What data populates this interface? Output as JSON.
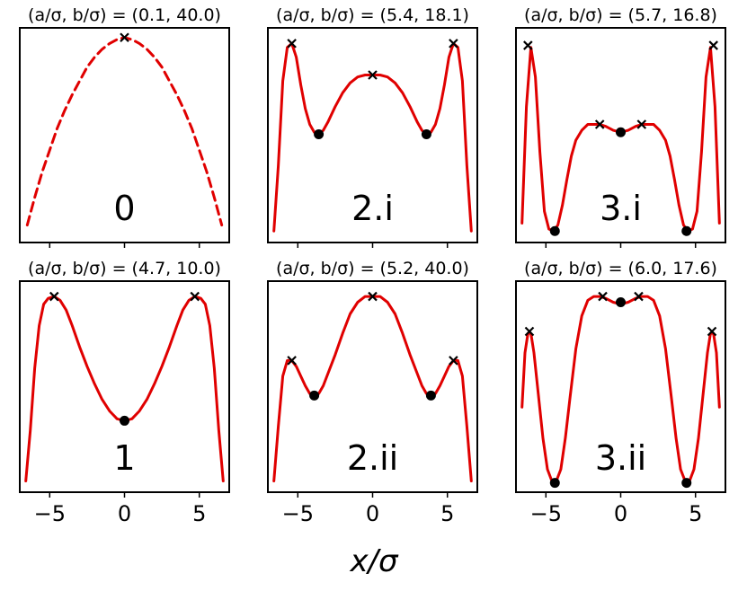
{
  "chart_data": {
    "xlabel": "x/σ",
    "xlim": [
      -7.0,
      7.0
    ],
    "xticks": [
      -5,
      0,
      5
    ],
    "xtick_labels": [
      "−5",
      "0",
      "5"
    ],
    "line_color": "#e00000",
    "marker_color": "#000000",
    "panels": [
      {
        "type": "line",
        "title": "(a/σ, b/σ) = (0.1, 40.0)",
        "label": "0",
        "dashed": true,
        "x": [
          -6.5,
          -6.0,
          -5.5,
          -5.0,
          -4.5,
          -4.0,
          -3.5,
          -3.0,
          -2.5,
          -2.0,
          -1.5,
          -1.0,
          -0.5,
          0,
          0.5,
          1.0,
          1.5,
          2.0,
          2.5,
          3.0,
          3.5,
          4.0,
          4.5,
          5.0,
          5.5,
          6.0,
          6.5
        ],
        "y": [
          0.05,
          0.19,
          0.32,
          0.43,
          0.54,
          0.63,
          0.71,
          0.78,
          0.85,
          0.9,
          0.94,
          0.97,
          0.99,
          1.0,
          0.99,
          0.97,
          0.94,
          0.9,
          0.85,
          0.78,
          0.71,
          0.63,
          0.54,
          0.43,
          0.32,
          0.19,
          0.05
        ],
        "maxima_x": [
          0.0
        ],
        "maxima_y": [
          1.0
        ],
        "minima_x": [],
        "minima_y": []
      },
      {
        "type": "line",
        "title": "(a/σ, b/σ) = (5.4, 18.1)",
        "label": "2.i",
        "dashed": false,
        "x": [
          -6.6,
          -6.3,
          -6.0,
          -5.7,
          -5.4,
          -5.1,
          -4.8,
          -4.5,
          -4.2,
          -3.9,
          -3.6,
          -3.3,
          -3.0,
          -2.5,
          -2.0,
          -1.5,
          -1.0,
          -0.5,
          0,
          0.5,
          1.0,
          1.5,
          2.0,
          2.5,
          3.0,
          3.3,
          3.6,
          3.9,
          4.2,
          4.5,
          4.8,
          5.1,
          5.4,
          5.7,
          6.0,
          6.3,
          6.6
        ],
        "y": [
          0.02,
          0.35,
          0.78,
          0.95,
          0.97,
          0.9,
          0.76,
          0.64,
          0.56,
          0.52,
          0.51,
          0.53,
          0.57,
          0.65,
          0.72,
          0.77,
          0.8,
          0.81,
          0.81,
          0.81,
          0.8,
          0.77,
          0.72,
          0.65,
          0.57,
          0.53,
          0.51,
          0.52,
          0.56,
          0.64,
          0.76,
          0.9,
          0.97,
          0.95,
          0.78,
          0.35,
          0.02
        ],
        "maxima_x": [
          -5.4,
          0.0,
          5.4
        ],
        "maxima_y": [
          0.97,
          0.81,
          0.97
        ],
        "minima_x": [
          -3.6,
          3.6
        ],
        "minima_y": [
          0.51,
          0.51
        ]
      },
      {
        "type": "line",
        "title": "(a/σ, b/σ) = (5.7, 16.8)",
        "label": "3.i",
        "dashed": false,
        "x": [
          -6.6,
          -6.3,
          -6.0,
          -5.7,
          -5.4,
          -5.1,
          -4.8,
          -4.5,
          -4.2,
          -3.9,
          -3.6,
          -3.3,
          -3.0,
          -2.6,
          -2.2,
          -1.8,
          -1.4,
          -1.0,
          -0.5,
          0,
          0.5,
          1.0,
          1.4,
          1.8,
          2.2,
          2.6,
          3.0,
          3.3,
          3.6,
          3.9,
          4.2,
          4.5,
          4.8,
          5.1,
          5.4,
          5.7,
          6.0,
          6.3,
          6.6
        ],
        "y": [
          0.06,
          0.65,
          0.95,
          0.8,
          0.42,
          0.12,
          0.03,
          0.02,
          0.05,
          0.15,
          0.28,
          0.4,
          0.48,
          0.53,
          0.56,
          0.56,
          0.56,
          0.55,
          0.53,
          0.52,
          0.53,
          0.55,
          0.56,
          0.56,
          0.56,
          0.53,
          0.48,
          0.4,
          0.28,
          0.15,
          0.05,
          0.02,
          0.03,
          0.12,
          0.42,
          0.8,
          0.95,
          0.65,
          0.06
        ],
        "maxima_x": [
          -6.2,
          -1.4,
          1.4,
          6.2
        ],
        "maxima_y": [
          0.96,
          0.56,
          0.56,
          0.96
        ],
        "minima_x": [
          -4.4,
          0.0,
          4.4
        ],
        "minima_y": [
          0.02,
          0.52,
          0.02
        ]
      },
      {
        "type": "line",
        "title": "(a/σ, b/σ) = (4.7, 10.0)",
        "label": "1",
        "dashed": false,
        "x": [
          -6.6,
          -6.3,
          -6.0,
          -5.7,
          -5.4,
          -5.1,
          -4.7,
          -4.3,
          -3.9,
          -3.5,
          -3.0,
          -2.5,
          -2.0,
          -1.5,
          -1.0,
          -0.5,
          0,
          0.5,
          1.0,
          1.5,
          2.0,
          2.5,
          3.0,
          3.5,
          3.9,
          4.3,
          4.7,
          5.1,
          5.4,
          5.7,
          6.0,
          6.3,
          6.6
        ],
        "y": [
          0.02,
          0.28,
          0.6,
          0.82,
          0.93,
          0.96,
          0.97,
          0.95,
          0.9,
          0.82,
          0.71,
          0.61,
          0.52,
          0.44,
          0.38,
          0.34,
          0.33,
          0.34,
          0.38,
          0.44,
          0.52,
          0.61,
          0.71,
          0.82,
          0.9,
          0.95,
          0.97,
          0.96,
          0.93,
          0.82,
          0.6,
          0.28,
          0.02
        ],
        "maxima_x": [
          -4.7,
          4.7
        ],
        "maxima_y": [
          0.97,
          0.97
        ],
        "minima_x": [
          0.0
        ],
        "minima_y": [
          0.33
        ]
      },
      {
        "type": "line",
        "title": "(a/σ, b/σ) = (5.2, 40.0)",
        "label": "2.ii",
        "dashed": false,
        "x": [
          -6.6,
          -6.3,
          -6.0,
          -5.7,
          -5.4,
          -5.1,
          -4.8,
          -4.5,
          -4.2,
          -3.9,
          -3.6,
          -3.3,
          -3.0,
          -2.5,
          -2.0,
          -1.5,
          -1.0,
          -0.5,
          0,
          0.5,
          1.0,
          1.5,
          2.0,
          2.5,
          3.0,
          3.3,
          3.6,
          3.9,
          4.2,
          4.5,
          4.8,
          5.1,
          5.4,
          5.7,
          6.0,
          6.3,
          6.6
        ],
        "y": [
          0.02,
          0.3,
          0.56,
          0.64,
          0.64,
          0.61,
          0.56,
          0.51,
          0.47,
          0.46,
          0.47,
          0.51,
          0.57,
          0.67,
          0.78,
          0.88,
          0.94,
          0.97,
          0.97,
          0.97,
          0.94,
          0.88,
          0.78,
          0.67,
          0.57,
          0.51,
          0.47,
          0.46,
          0.47,
          0.51,
          0.56,
          0.61,
          0.64,
          0.64,
          0.56,
          0.3,
          0.02
        ],
        "maxima_x": [
          -5.4,
          0.0,
          5.4
        ],
        "maxima_y": [
          0.64,
          0.97,
          0.64
        ],
        "minima_x": [
          -3.9,
          3.9
        ],
        "minima_y": [
          0.46,
          0.46
        ]
      },
      {
        "type": "line",
        "title": "(a/σ, b/σ) = (6.0, 17.6)",
        "label": "3.ii",
        "dashed": false,
        "x": [
          -6.6,
          -6.4,
          -6.2,
          -6.0,
          -5.8,
          -5.5,
          -5.2,
          -4.9,
          -4.6,
          -4.3,
          -4.0,
          -3.7,
          -3.4,
          -3.0,
          -2.6,
          -2.2,
          -1.8,
          -1.4,
          -1.0,
          -0.5,
          0,
          0.5,
          1.0,
          1.4,
          1.8,
          2.2,
          2.6,
          3.0,
          3.4,
          3.7,
          4.0,
          4.3,
          4.6,
          4.9,
          5.2,
          5.5,
          5.8,
          6.0,
          6.2,
          6.4,
          6.6
        ],
        "y": [
          0.4,
          0.68,
          0.78,
          0.78,
          0.68,
          0.46,
          0.24,
          0.08,
          0.02,
          0.02,
          0.08,
          0.24,
          0.44,
          0.7,
          0.87,
          0.95,
          0.97,
          0.97,
          0.96,
          0.94,
          0.93,
          0.94,
          0.96,
          0.97,
          0.97,
          0.95,
          0.87,
          0.7,
          0.44,
          0.24,
          0.08,
          0.02,
          0.02,
          0.08,
          0.24,
          0.46,
          0.68,
          0.78,
          0.78,
          0.68,
          0.4
        ],
        "maxima_x": [
          -6.1,
          -1.2,
          1.2,
          6.1
        ],
        "maxima_y": [
          0.79,
          0.97,
          0.97,
          0.79
        ],
        "minima_x": [
          -4.4,
          0.0,
          4.4
        ],
        "minima_y": [
          0.01,
          0.94,
          0.01
        ]
      }
    ]
  }
}
